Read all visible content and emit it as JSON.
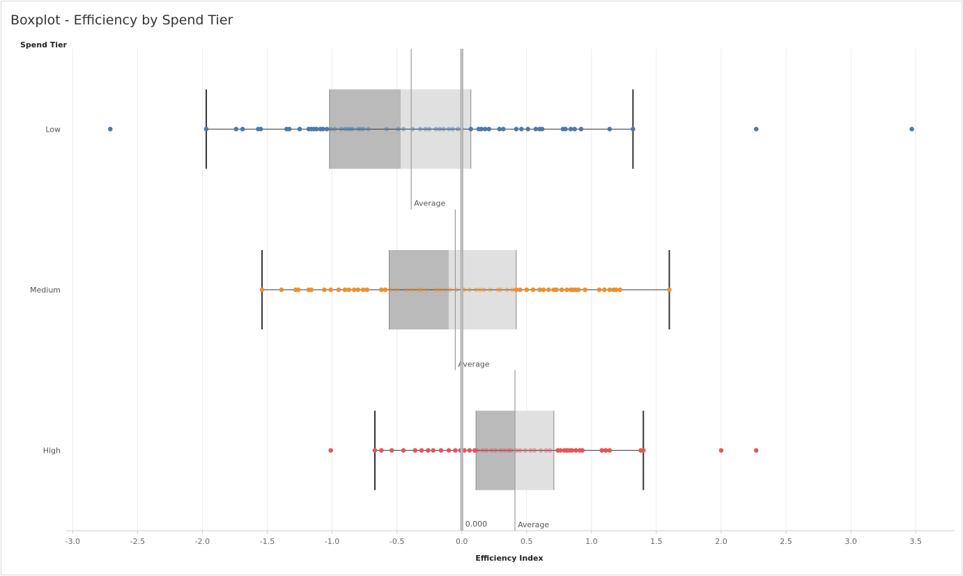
{
  "header": {
    "title": "Boxplot - Efficiency by Spend Tier",
    "row_header": "Spend Tier"
  },
  "chart_data": {
    "type": "boxplot",
    "title": "Boxplot - Efficiency by Spend Tier",
    "xlabel": "Efficiency Index",
    "ylabel": "Spend Tier",
    "xlim": [
      -3.05,
      3.8
    ],
    "xticks": [
      -3.0,
      -2.5,
      -2.0,
      -1.5,
      -1.0,
      -0.5,
      0.0,
      0.5,
      1.0,
      1.5,
      2.0,
      2.5,
      3.0,
      3.5
    ],
    "xtick_labels": [
      "-3.0",
      "-2.5",
      "-2.0",
      "-1.5",
      "-1.0",
      "-0.5",
      "0.0",
      "0.5",
      "1.0",
      "1.5",
      "2.0",
      "2.5",
      "3.0",
      "3.5"
    ],
    "grid": "vertical",
    "reference_line": {
      "value": 0.0,
      "label": "0.000"
    },
    "colors": {
      "Low": "#4e79a7",
      "Medium": "#f28e2b",
      "High": "#e15759",
      "lower_box": "#bababa",
      "upper_box": "#e0e0e0"
    },
    "series": [
      {
        "category": "Low",
        "whisker_low": -1.97,
        "q1": -1.02,
        "median": -0.47,
        "q3": 0.07,
        "whisker_high": 1.32,
        "average": -0.39,
        "average_label": "Average",
        "points": [
          -2.71,
          -1.97,
          -1.74,
          -1.69,
          -1.57,
          -1.55,
          -1.35,
          -1.33,
          -1.25,
          -1.18,
          -1.16,
          -1.14,
          -1.12,
          -1.09,
          -1.07,
          -1.04,
          -1.01,
          -0.98,
          -0.93,
          -0.9,
          -0.88,
          -0.86,
          -0.84,
          -0.8,
          -0.78,
          -0.76,
          -0.72,
          -0.58,
          -0.49,
          -0.45,
          -0.38,
          -0.32,
          -0.28,
          -0.25,
          -0.2,
          -0.17,
          -0.14,
          -0.1,
          -0.07,
          -0.03,
          0.0,
          0.07,
          0.13,
          0.15,
          0.18,
          0.21,
          0.29,
          0.32,
          0.42,
          0.46,
          0.51,
          0.57,
          0.6,
          0.62,
          0.78,
          0.8,
          0.84,
          0.87,
          0.92,
          1.14,
          1.32,
          2.27,
          3.47
        ]
      },
      {
        "category": "Medium",
        "whisker_low": -1.54,
        "q1": -0.56,
        "median": -0.1,
        "q3": 0.42,
        "whisker_high": 1.6,
        "average": -0.05,
        "average_label": "Average",
        "points": [
          -1.54,
          -1.39,
          -1.28,
          -1.26,
          -1.18,
          -1.16,
          -1.06,
          -1.01,
          -0.95,
          -0.9,
          -0.87,
          -0.83,
          -0.8,
          -0.76,
          -0.73,
          -0.62,
          -0.59,
          -0.55,
          -0.5,
          -0.42,
          -0.38,
          -0.33,
          -0.31,
          -0.27,
          -0.2,
          -0.17,
          -0.13,
          -0.09,
          -0.04,
          0.02,
          0.06,
          0.11,
          0.14,
          0.17,
          0.22,
          0.28,
          0.3,
          0.35,
          0.39,
          0.42,
          0.45,
          0.5,
          0.55,
          0.6,
          0.63,
          0.67,
          0.71,
          0.73,
          0.77,
          0.81,
          0.84,
          0.86,
          0.88,
          0.9,
          0.95,
          1.06,
          1.1,
          1.14,
          1.17,
          1.19,
          1.22,
          1.6
        ]
      },
      {
        "category": "High",
        "whisker_low": -0.67,
        "q1": 0.11,
        "median": 0.41,
        "q3": 0.71,
        "whisker_high": 1.4,
        "average": 0.41,
        "average_label": "Average",
        "points": [
          -1.01,
          -0.67,
          -0.62,
          -0.54,
          -0.45,
          -0.36,
          -0.31,
          -0.26,
          -0.22,
          -0.16,
          -0.1,
          -0.05,
          -0.01,
          0.02,
          0.06,
          0.1,
          0.12,
          0.16,
          0.19,
          0.23,
          0.26,
          0.3,
          0.33,
          0.36,
          0.38,
          0.42,
          0.45,
          0.49,
          0.53,
          0.56,
          0.61,
          0.65,
          0.68,
          0.74,
          0.76,
          0.79,
          0.81,
          0.83,
          0.85,
          0.88,
          0.91,
          0.93,
          1.08,
          1.11,
          1.14,
          1.38,
          1.4,
          2.0,
          2.27
        ]
      }
    ]
  }
}
